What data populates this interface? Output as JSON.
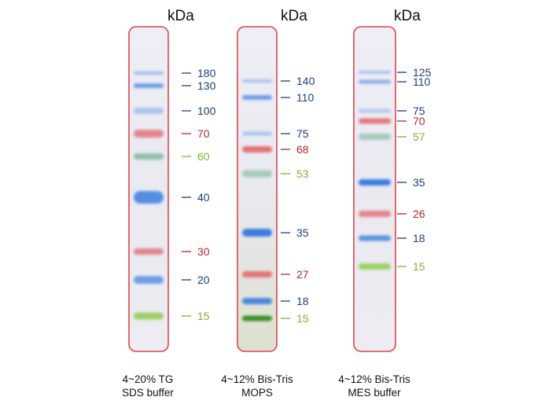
{
  "colors": {
    "blue": "#3a7ee0",
    "red": "#e3646a",
    "green_label": "#8bc53f",
    "teal": "#7cb59a",
    "dark_green": "#3f8f2a",
    "lime": "#94cf58",
    "label_blue": "#1d3f78",
    "label_red": "#b7262d",
    "label_green": "#7ab530",
    "frame": "#e0454c"
  },
  "unit_label": "kDa",
  "gels": [
    {
      "name": "tg",
      "unit": "kDa",
      "caption_line1": "4~20% TG",
      "caption_line2": "SDS buffer",
      "bands": [
        {
          "mw": "180",
          "color": "blue",
          "label_color": "label_blue",
          "intensity": 0.45
        },
        {
          "mw": "130",
          "color": "blue",
          "label_color": "label_blue",
          "intensity": 0.7
        },
        {
          "mw": "100",
          "color": "blue",
          "label_color": "label_blue",
          "intensity": 0.35
        },
        {
          "mw": "70",
          "color": "red",
          "label_color": "label_red",
          "intensity": 0.75
        },
        {
          "mw": "60",
          "color": "teal",
          "label_color": "label_green",
          "intensity": 0.8
        },
        {
          "mw": "40",
          "color": "blue",
          "label_color": "label_blue",
          "intensity": 0.85
        },
        {
          "mw": "30",
          "color": "red",
          "label_color": "label_red",
          "intensity": 0.75
        },
        {
          "mw": "20",
          "color": "blue",
          "label_color": "label_blue",
          "intensity": 0.7
        },
        {
          "mw": "15",
          "color": "lime",
          "label_color": "label_green",
          "intensity": 0.9
        }
      ]
    },
    {
      "name": "mops",
      "unit": "kDa",
      "caption_line1": "4~12% Bis-Tris",
      "caption_line2": "MOPS",
      "bands": [
        {
          "mw": "140",
          "color": "blue",
          "label_color": "label_blue",
          "intensity": 0.4
        },
        {
          "mw": "110",
          "color": "blue",
          "label_color": "label_blue",
          "intensity": 0.7
        },
        {
          "mw": "75",
          "color": "blue",
          "label_color": "label_blue",
          "intensity": 0.35
        },
        {
          "mw": "68",
          "color": "red",
          "label_color": "label_red",
          "intensity": 0.9
        },
        {
          "mw": "53",
          "color": "teal",
          "label_color": "label_green",
          "intensity": 0.6
        },
        {
          "mw": "35",
          "color": "blue",
          "label_color": "label_blue",
          "intensity": 1.0
        },
        {
          "mw": "27",
          "color": "red",
          "label_color": "label_red",
          "intensity": 0.85
        },
        {
          "mw": "18",
          "color": "blue",
          "label_color": "label_blue",
          "intensity": 0.9
        },
        {
          "mw": "15",
          "color": "dark_green",
          "label_color": "label_green",
          "intensity": 1.0
        }
      ]
    },
    {
      "name": "mes",
      "unit": "kDa",
      "caption_line1": "4~12% Bis-Tris",
      "caption_line2": "MES buffer",
      "bands": [
        {
          "mw": "125",
          "color": "blue",
          "label_color": "label_blue",
          "intensity": 0.35
        },
        {
          "mw": "110",
          "color": "blue",
          "label_color": "label_blue",
          "intensity": 0.55
        },
        {
          "mw": "75",
          "color": "blue",
          "label_color": "label_blue",
          "intensity": 0.3
        },
        {
          "mw": "70",
          "color": "red",
          "label_color": "label_red",
          "intensity": 0.85
        },
        {
          "mw": "57",
          "color": "teal",
          "label_color": "label_green",
          "intensity": 0.6
        },
        {
          "mw": "35",
          "color": "blue",
          "label_color": "label_blue",
          "intensity": 1.0
        },
        {
          "mw": "26",
          "color": "red",
          "label_color": "label_red",
          "intensity": 0.75
        },
        {
          "mw": "18",
          "color": "blue",
          "label_color": "label_blue",
          "intensity": 0.8
        },
        {
          "mw": "15",
          "color": "lime",
          "label_color": "label_green",
          "intensity": 0.9
        }
      ]
    }
  ]
}
